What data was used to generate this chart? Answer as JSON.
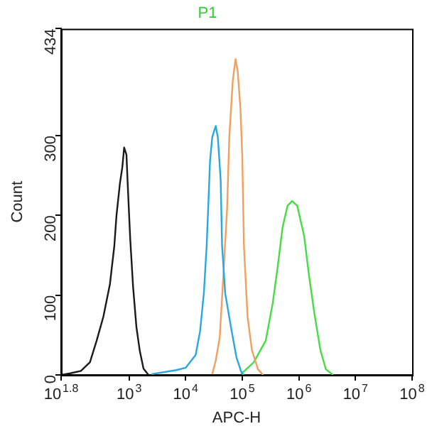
{
  "chart_data": {
    "type": "line",
    "title": "P1",
    "xlabel": "APC-H",
    "ylabel": "Count",
    "log": "x",
    "grid": false,
    "legend": false,
    "marker": "none",
    "line_style": "solid",
    "xlim": [
      63.0957,
      100000000
    ],
    "xticks": [
      {
        "value": 63.0957,
        "label": "10$^{1.8}$"
      },
      {
        "value": 1000,
        "label": "10$^{3}$"
      },
      {
        "value": 10000,
        "label": "10$^{4}$"
      },
      {
        "value": 100000,
        "label": "10$^{5}$"
      },
      {
        "value": 1000000,
        "label": "10$^{6}$"
      },
      {
        "value": 10000000,
        "label": "10$^{7}$"
      },
      {
        "value": 100000000,
        "label": "10$^{8}$"
      }
    ],
    "ylim": [
      0,
      434
    ],
    "yticks": [
      0,
      100,
      200,
      300,
      434
    ],
    "series": [
      {
        "color": "#1a1a1a",
        "x": [
          64,
          91,
          141,
          204,
          268,
          352,
          460,
          550,
          600,
          690,
          760,
          820,
          900,
          960,
          1050,
          1180,
          1350,
          1550,
          1800,
          2200
        ],
        "values": [
          0,
          2,
          5,
          16,
          43,
          73,
          114,
          162,
          200,
          240,
          260,
          285,
          276,
          230,
          170,
          110,
          60,
          30,
          8,
          0
        ]
      },
      {
        "color": "#29a8e0",
        "x": [
          2500,
          6800,
          10000,
          15000,
          18000,
          21000,
          23500,
          25000,
          27000,
          29500,
          34000,
          37000,
          41500,
          44000,
          50000,
          65000,
          79000,
          96000,
          105000
        ],
        "values": [
          1,
          6,
          9,
          25,
          55,
          103,
          162,
          209,
          269,
          298,
          312,
          298,
          245,
          162,
          102,
          55,
          22,
          4,
          0
        ]
      },
      {
        "color": "#f0a060",
        "x": [
          29500,
          34000,
          40000,
          47000,
          54000,
          59000,
          68000,
          76000,
          83000,
          93000,
          100000,
          107000,
          124000,
          148000,
          190000,
          233000
        ],
        "values": [
          1,
          18,
          47,
          132,
          209,
          298,
          369,
          396,
          381,
          333,
          274,
          162,
          73,
          31,
          7,
          0
        ]
      },
      {
        "color": "#44dd44",
        "x": [
          95000,
          160000,
          260000,
          345000,
          425000,
          515000,
          630000,
          760000,
          935000,
          1240000,
          1500000,
          1870000,
          2400000,
          3000000,
          4000000
        ],
        "values": [
          1,
          16,
          43,
          90,
          137,
          185,
          212,
          218,
          212,
          174,
          126,
          78,
          31,
          7,
          0
        ]
      }
    ]
  }
}
